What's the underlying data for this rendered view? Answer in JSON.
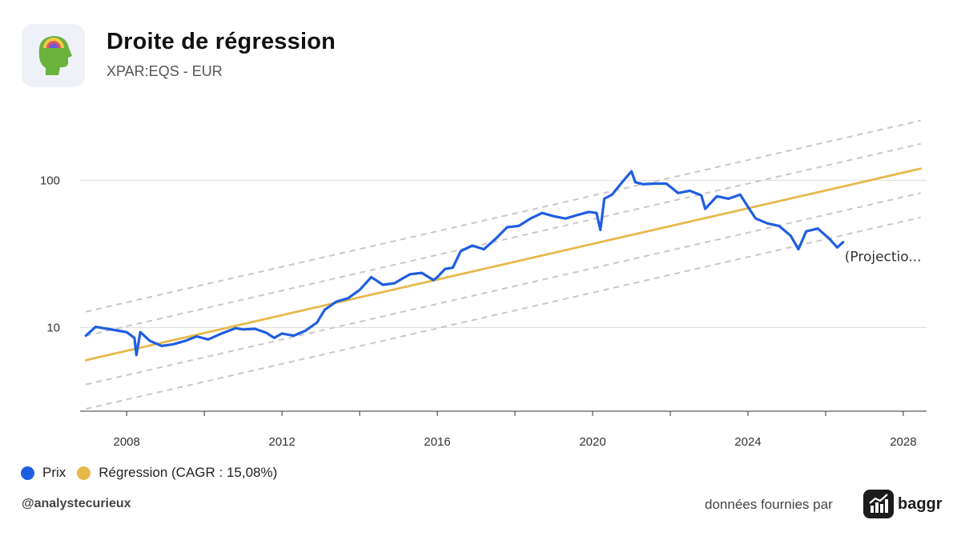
{
  "header": {
    "title": "Droite de régression",
    "subtitle": "XPAR:EQS - EUR"
  },
  "legend": {
    "price_label": "Prix",
    "regression_label": "Régression (CAGR : 15,08%)"
  },
  "footer": {
    "handle": "@analystecurieux",
    "provider_text": "données fournies par",
    "provider_name": "baggr"
  },
  "colors": {
    "price": "#1f5ee0",
    "regression": "#e8b84b",
    "bands": "#c8c8c8",
    "grid": "#dddddd"
  },
  "chart_data": {
    "type": "line",
    "title": "Droite de régression",
    "subtitle": "XPAR:EQS - EUR",
    "y_scale": "log",
    "ylim": [
      2.7,
      330
    ],
    "xlim": [
      2006.8,
      2028.6
    ],
    "x_ticks": [
      2008,
      2012,
      2016,
      2020,
      2024,
      2028
    ],
    "y_ticks": [
      10,
      100
    ],
    "annotation": "(Projectio...",
    "series": [
      {
        "name": "Prix",
        "x": [
          2006.95,
          2007.2,
          2007.5,
          2007.8,
          2008.0,
          2008.2,
          2008.25,
          2008.35,
          2008.6,
          2008.9,
          2009.2,
          2009.5,
          2009.8,
          2010.1,
          2010.4,
          2010.8,
          2011.0,
          2011.3,
          2011.6,
          2011.8,
          2012.0,
          2012.3,
          2012.6,
          2012.9,
          2013.1,
          2013.4,
          2013.7,
          2014.0,
          2014.3,
          2014.6,
          2014.9,
          2015.1,
          2015.3,
          2015.6,
          2015.9,
          2016.0,
          2016.2,
          2016.4,
          2016.6,
          2016.9,
          2017.2,
          2017.5,
          2017.8,
          2018.1,
          2018.4,
          2018.7,
          2019.0,
          2019.3,
          2019.6,
          2019.9,
          2020.1,
          2020.2,
          2020.3,
          2020.5,
          2020.8,
          2021.0,
          2021.1,
          2021.3,
          2021.6,
          2021.9,
          2022.2,
          2022.5,
          2022.8,
          2022.9,
          2023.2,
          2023.5,
          2023.8,
          2024.0,
          2024.2,
          2024.5,
          2024.8,
          2025.1,
          2025.3,
          2025.5,
          2025.8,
          2026.1,
          2026.3,
          2026.45
        ],
        "values": [
          8.8,
          10.1,
          9.8,
          9.5,
          9.3,
          8.5,
          6.5,
          9.3,
          8.1,
          7.5,
          7.7,
          8.1,
          8.7,
          8.3,
          9.0,
          9.9,
          9.7,
          9.8,
          9.2,
          8.5,
          9.1,
          8.8,
          9.5,
          10.8,
          13.2,
          15.0,
          15.8,
          18.0,
          22.0,
          19.5,
          20.0,
          21.5,
          23.0,
          23.5,
          21.0,
          22.0,
          25.0,
          25.5,
          33.0,
          36.0,
          34.0,
          40.0,
          48.0,
          49.0,
          55.0,
          60.0,
          57.0,
          55.0,
          58.0,
          61.0,
          60.0,
          46.0,
          75.0,
          80.0,
          100.0,
          115.0,
          97.0,
          94.0,
          95.0,
          95.0,
          82.0,
          85.0,
          79.0,
          64.0,
          78.0,
          75.0,
          80.0,
          66.0,
          55.0,
          51.0,
          49.0,
          42.0,
          34.0,
          45.0,
          47.0,
          40.0,
          35.0,
          38.0
        ]
      },
      {
        "name": "Régression (CAGR : 15,08%)",
        "x": [
          2006.95,
          2028.45
        ],
        "values": [
          6.0,
          120.0
        ]
      }
    ],
    "bands": {
      "x": [
        2006.95,
        2028.45
      ],
      "values": [
        [
          12.8,
          255.0
        ],
        [
          8.8,
          177.0
        ],
        [
          4.1,
          82.0
        ],
        [
          2.8,
          56.0
        ]
      ]
    }
  }
}
